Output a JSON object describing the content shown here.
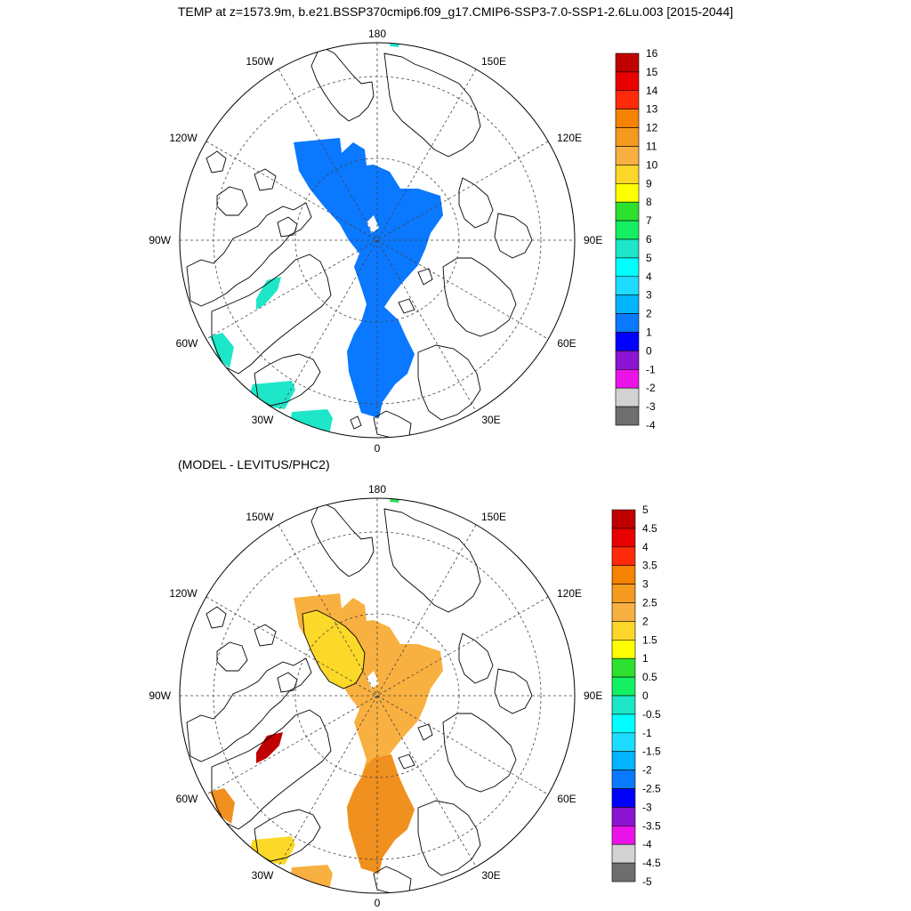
{
  "figure": {
    "title": "TEMP at z=1573.9m, b.e21.BSSP370cmip6.f09_g17.CMIP6-SSP3-7.0-SSP1-2.6Lu.003 [2015-2044]",
    "subtitle": "(MODEL - LEVITUS/PHC2)"
  },
  "meridian_labels": {
    "top": "180",
    "bottom": "0",
    "left": "90W",
    "right": "90E",
    "upper_left_outer": "150W",
    "upper_left_inner": "120W",
    "upper_right_outer": "150E",
    "upper_right_inner": "120E",
    "lower_left_inner": "60W",
    "lower_left_outer": "30W",
    "lower_right_inner": "60E",
    "lower_right_outer": "30E"
  },
  "colors": {
    "top_fill_main": "#0a78ff",
    "top_fill_patches": "#1ee6c8",
    "bottom_fill_orange": "#f0901e",
    "bottom_fill_lightorange": "#f8b040",
    "bottom_fill_yellow": "#fcd828",
    "bottom_fill_red": "#c00000",
    "bottom_fill_green": "#28e05a"
  },
  "colorbars": {
    "top": {
      "labels": [
        "16",
        "15",
        "14",
        "13",
        "12",
        "11",
        "10",
        "9",
        "8",
        "7",
        "6",
        "5",
        "4",
        "3",
        "2",
        "1",
        "0",
        "-1",
        "-2",
        "-3",
        "-4"
      ],
      "colors": [
        "#c00000",
        "#e80000",
        "#ff2a0a",
        "#f58200",
        "#f59a1e",
        "#f8b040",
        "#fcd628",
        "#ffff00",
        "#2ee02e",
        "#14f062",
        "#1ee6c8",
        "#00ffff",
        "#1edcff",
        "#00b4ff",
        "#0a78ff",
        "#0000ff",
        "#8c14d2",
        "#ea14ea",
        "#d2d2d2",
        "#6e6e6e"
      ]
    },
    "bottom": {
      "labels": [
        "5",
        "4.5",
        "4",
        "3.5",
        "3",
        "2.5",
        "2",
        "1.5",
        "1",
        "0.5",
        "0",
        "-0.5",
        "-1",
        "-1.5",
        "-2",
        "-2.5",
        "-3",
        "-3.5",
        "-4",
        "-4.5",
        "-5"
      ],
      "colors": [
        "#c00000",
        "#e80000",
        "#ff2a0a",
        "#f58200",
        "#f59a1e",
        "#f8b040",
        "#fcd628",
        "#ffff00",
        "#2ee02e",
        "#14f062",
        "#1ee6c8",
        "#00ffff",
        "#1edcff",
        "#00b4ff",
        "#0a78ff",
        "#0000ff",
        "#8c14d2",
        "#ea14ea",
        "#d2d2d2",
        "#6e6e6e"
      ]
    }
  }
}
